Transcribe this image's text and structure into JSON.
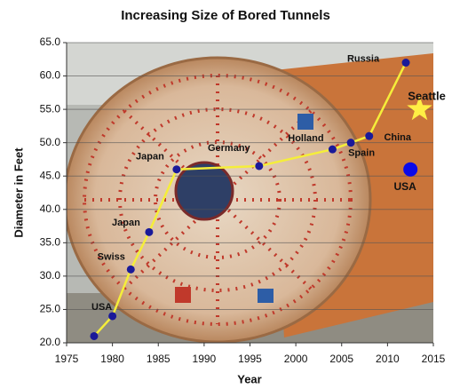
{
  "chart_data": {
    "type": "line",
    "title": "Increasing Size of Bored Tunnels",
    "x_label": "Year",
    "y_label": "Diameter in Feet",
    "xlim": [
      1975,
      2015
    ],
    "xticks": [
      1975,
      1980,
      1985,
      1990,
      1995,
      2000,
      2005,
      2010,
      2015
    ],
    "ylim": [
      20,
      65
    ],
    "yticks": [
      {
        "value": 20,
        "label": "20.0"
      },
      {
        "value": 25,
        "label": "25.0"
      },
      {
        "value": 30,
        "label": "30.0"
      },
      {
        "value": 35,
        "label": "35.0"
      },
      {
        "value": 40,
        "label": "40.0"
      },
      {
        "value": 45,
        "label": "45.0"
      },
      {
        "value": 50,
        "label": "50.0"
      },
      {
        "value": 55,
        "label": "55.0"
      },
      {
        "value": 60,
        "label": "60.0"
      },
      {
        "value": 65,
        "label": "65.0"
      }
    ],
    "grid": true,
    "series": [
      {
        "line_color": "#f5ee3a",
        "color": "#1a1a99",
        "x": [
          1978,
          1980,
          1982,
          1984,
          1987,
          1996,
          2004,
          2006,
          2008,
          2012
        ],
        "values": [
          21,
          24,
          31,
          36.6,
          46,
          46.5,
          49,
          50,
          51,
          62
        ],
        "point_labels": [
          null,
          "USA",
          "Swiss",
          "Japan",
          "Japan",
          "Germany",
          "Holland",
          "Spain",
          "China",
          "Russia"
        ]
      }
    ],
    "markers": [
      {
        "name": "Seattle",
        "x": 2013.5,
        "y": 55,
        "shape": "star",
        "color": "#ffee44"
      },
      {
        "name": "USA",
        "x": 2012.5,
        "y": 46,
        "shape": "circle",
        "color": "#0a0ae8"
      }
    ]
  }
}
